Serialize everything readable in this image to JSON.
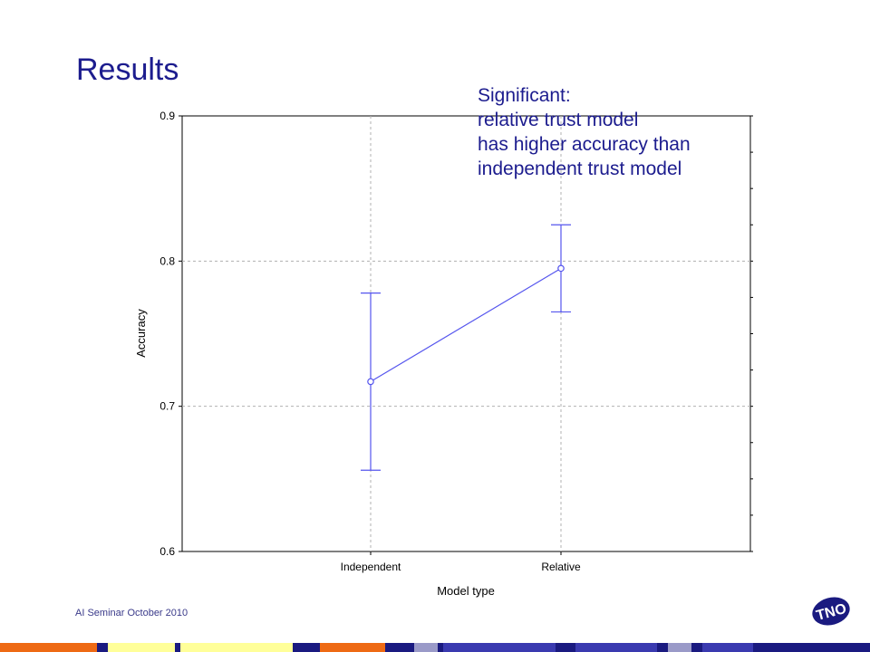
{
  "slide": {
    "title": "Results",
    "footer": "AI Seminar October 2010",
    "logo_text": "TNO"
  },
  "annotation": {
    "lines": [
      "Significant:",
      "relative trust model",
      "has higher accuracy than",
      "independent trust model"
    ]
  },
  "colors": {
    "title": "#1c1c8e",
    "series": "#5555ee",
    "bar_orange": "#ee6a14",
    "bar_yellow": "#ffff99",
    "bar_navy": "#1a1a80",
    "bar_blue": "#3a3ab0",
    "bar_gray": "#9a9ac8"
  },
  "chart_data": {
    "type": "line",
    "categories": [
      "Independent",
      "Relative"
    ],
    "values": [
      0.717,
      0.795
    ],
    "error_low": [
      0.656,
      0.765
    ],
    "error_high": [
      0.778,
      0.825
    ],
    "xlabel": "Model type",
    "ylabel": "Accuracy",
    "ylim": [
      0.6,
      0.9
    ],
    "yticks": [
      "0.6",
      "0.7",
      "0.8",
      "0.9"
    ],
    "grid": true
  }
}
